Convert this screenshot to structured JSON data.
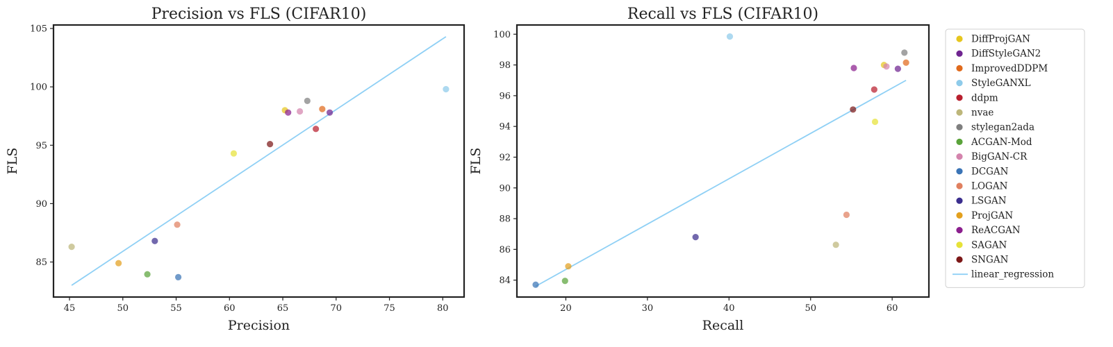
{
  "chart_data": [
    {
      "type": "scatter",
      "title": "Precision vs FLS (CIFAR10)",
      "xlabel": "Precision",
      "ylabel": "FLS",
      "xlim": [
        43.5,
        82
      ],
      "ylim": [
        82,
        105.3
      ],
      "xticks": [
        45,
        50,
        55,
        60,
        65,
        70,
        75,
        80
      ],
      "yticks": [
        85,
        90,
        95,
        100,
        105
      ],
      "series": [
        {
          "name": "DiffProjGAN",
          "x": 65.2,
          "y": 98.0
        },
        {
          "name": "DiffStyleGAN2",
          "x": 69.4,
          "y": 97.8
        },
        {
          "name": "ImprovedDDPM",
          "x": 68.7,
          "y": 98.1
        },
        {
          "name": "StyleGANXL",
          "x": 80.3,
          "y": 99.8
        },
        {
          "name": "ddpm",
          "x": 68.1,
          "y": 96.4
        },
        {
          "name": "nvae",
          "x": 45.2,
          "y": 86.3
        },
        {
          "name": "stylegan2ada",
          "x": 67.3,
          "y": 98.8
        },
        {
          "name": "ACGAN-Mod",
          "x": 52.3,
          "y": 83.95
        },
        {
          "name": "BigGAN-CR",
          "x": 66.6,
          "y": 97.9
        },
        {
          "name": "DCGAN",
          "x": 55.2,
          "y": 83.7
        },
        {
          "name": "LOGAN",
          "x": 55.1,
          "y": 88.2
        },
        {
          "name": "LSGAN",
          "x": 53.0,
          "y": 86.8
        },
        {
          "name": "ProjGAN",
          "x": 49.6,
          "y": 84.9
        },
        {
          "name": "ReACGAN",
          "x": 65.5,
          "y": 97.8
        },
        {
          "name": "SAGAN",
          "x": 60.4,
          "y": 94.3
        },
        {
          "name": "SNGAN",
          "x": 63.8,
          "y": 95.1
        }
      ],
      "regression": {
        "name": "linear_regression",
        "x": [
          45.2,
          80.3
        ],
        "y": [
          83.0,
          104.3
        ]
      },
      "grid": false
    },
    {
      "type": "scatter",
      "title": "Recall vs FLS (CIFAR10)",
      "xlabel": "Recall",
      "ylabel": "FLS",
      "xlim": [
        14,
        64.5
      ],
      "ylim": [
        82.9,
        100.6
      ],
      "xticks": [
        20,
        30,
        40,
        50,
        60
      ],
      "yticks": [
        84,
        86,
        88,
        90,
        92,
        94,
        96,
        98,
        100
      ],
      "series": [
        {
          "name": "DiffProjGAN",
          "x": 59.0,
          "y": 98.0
        },
        {
          "name": "DiffStyleGAN2",
          "x": 60.7,
          "y": 97.75
        },
        {
          "name": "ImprovedDDPM",
          "x": 61.7,
          "y": 98.15
        },
        {
          "name": "StyleGANXL",
          "x": 40.1,
          "y": 99.85
        },
        {
          "name": "ddpm",
          "x": 57.8,
          "y": 96.4
        },
        {
          "name": "nvae",
          "x": 53.1,
          "y": 86.3
        },
        {
          "name": "stylegan2ada",
          "x": 61.5,
          "y": 98.8
        },
        {
          "name": "ACGAN-Mod",
          "x": 19.9,
          "y": 83.95
        },
        {
          "name": "BigGAN-CR",
          "x": 59.3,
          "y": 97.9
        },
        {
          "name": "DCGAN",
          "x": 16.3,
          "y": 83.7
        },
        {
          "name": "LOGAN",
          "x": 54.4,
          "y": 88.25
        },
        {
          "name": "LSGAN",
          "x": 35.9,
          "y": 86.8
        },
        {
          "name": "ProjGAN",
          "x": 20.3,
          "y": 84.9
        },
        {
          "name": "ReACGAN",
          "x": 55.3,
          "y": 97.8
        },
        {
          "name": "SAGAN",
          "x": 57.9,
          "y": 94.3
        },
        {
          "name": "SNGAN",
          "x": 55.2,
          "y": 95.1
        }
      ],
      "regression": {
        "name": "linear_regression",
        "x": [
          16.3,
          61.7
        ],
        "y": [
          83.6,
          97.0
        ]
      },
      "grid": false
    }
  ],
  "legend": {
    "placement": "outside-right",
    "items": [
      {
        "label": "DiffProjGAN",
        "color": "#e6c61e"
      },
      {
        "label": "DiffStyleGAN2",
        "color": "#6f2490"
      },
      {
        "label": "ImprovedDDPM",
        "color": "#e06a1c"
      },
      {
        "label": "StyleGANXL",
        "color": "#8ecbea"
      },
      {
        "label": "ddpm",
        "color": "#b81f2e"
      },
      {
        "label": "nvae",
        "color": "#bdb67a"
      },
      {
        "label": "stylegan2ada",
        "color": "#7f7f7f"
      },
      {
        "label": "ACGAN-Mod",
        "color": "#5aa33a"
      },
      {
        "label": "BigGAN-CR",
        "color": "#d484ad"
      },
      {
        "label": "DCGAN",
        "color": "#3a74b6"
      },
      {
        "label": "LOGAN",
        "color": "#e0805f"
      },
      {
        "label": "LSGAN",
        "color": "#3b2e8e"
      },
      {
        "label": "ProjGAN",
        "color": "#e3a01e"
      },
      {
        "label": "ReACGAN",
        "color": "#8b1f8e"
      },
      {
        "label": "SAGAN",
        "color": "#e6e238"
      },
      {
        "label": "SNGAN",
        "color": "#7c1717"
      }
    ],
    "line_item": {
      "label": "linear_regression",
      "color": "#8fd0f5"
    }
  }
}
